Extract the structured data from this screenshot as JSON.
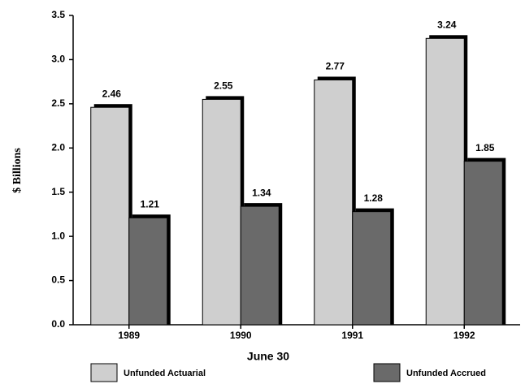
{
  "chart_data": {
    "type": "bar",
    "y_label": "$ Billions",
    "x_label": "June 30",
    "categories": [
      "1989",
      "1990",
      "1991",
      "1992"
    ],
    "series": [
      {
        "name": "Unfunded Actuarial",
        "color": "#cfcfcf",
        "values": [
          2.46,
          2.55,
          2.77,
          3.24
        ]
      },
      {
        "name": "Unfunded Accrued",
        "color": "#6a6a6a",
        "values": [
          1.21,
          1.34,
          1.28,
          1.85
        ]
      }
    ],
    "ylim": [
      0,
      3.5
    ],
    "yticks": [
      {
        "value": 0,
        "label": "0.0"
      },
      0.5,
      {
        "value": 1,
        "label": "1.0"
      },
      1.5,
      {
        "value": 2,
        "label": "2.0"
      },
      2.5,
      {
        "value": 3,
        "label": "3.0"
      },
      3.5
    ],
    "grid": false
  }
}
